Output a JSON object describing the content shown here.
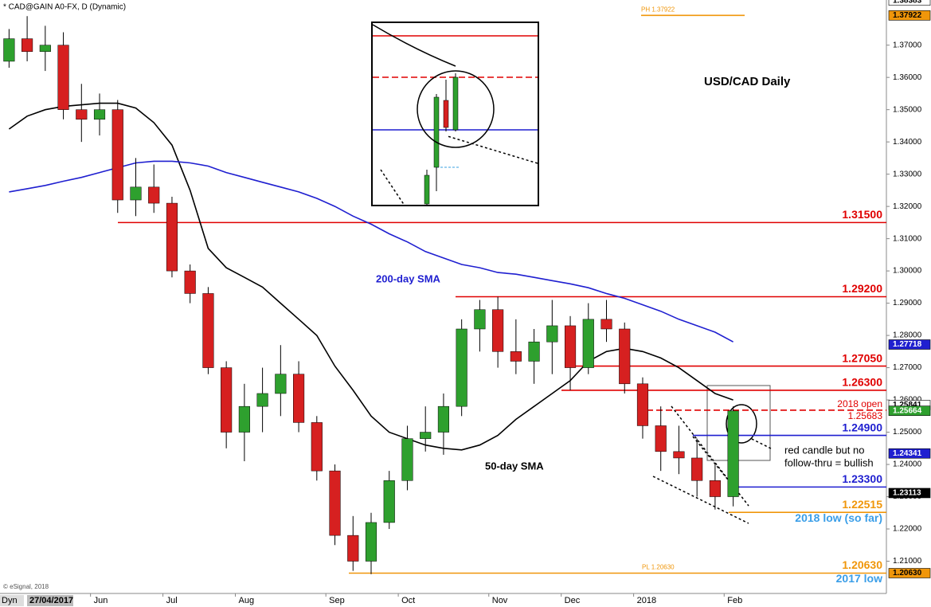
{
  "chart_data": {
    "type": "candlestick",
    "source": "* CAD@GAIN A0-FX, D (Dynamic)",
    "title": "USD/CAD Daily",
    "credit": "© eSignal, 2018",
    "mode_label": "Dyn",
    "start_label": "27/04/2017",
    "categories": [
      null,
      null,
      null,
      null,
      null,
      "Jun",
      null,
      null,
      null,
      "Jul",
      null,
      null,
      null,
      "Aug",
      null,
      null,
      null,
      null,
      "Sep",
      null,
      null,
      null,
      "Oct",
      null,
      null,
      null,
      null,
      "Nov",
      null,
      null,
      null,
      "Dec",
      null,
      null,
      null,
      "2018",
      null,
      null,
      null,
      null,
      "Feb"
    ],
    "open": [
      1.365,
      1.372,
      1.368,
      1.37,
      1.35,
      1.347,
      1.35,
      1.322,
      1.326,
      1.321,
      1.3,
      1.293,
      1.27,
      1.25,
      1.258,
      1.262,
      1.268,
      1.253,
      1.238,
      1.218,
      1.21,
      1.222,
      1.235,
      1.248,
      1.25,
      1.258,
      1.282,
      1.288,
      1.275,
      1.272,
      1.278,
      1.283,
      1.27,
      1.285,
      1.282,
      1.265,
      1.252,
      1.244,
      1.242,
      1.235,
      1.23
    ],
    "high": [
      1.375,
      1.379,
      1.376,
      1.374,
      1.358,
      1.355,
      1.353,
      1.335,
      1.333,
      1.323,
      1.302,
      1.295,
      1.272,
      1.265,
      1.27,
      1.277,
      1.272,
      1.255,
      1.24,
      1.224,
      1.225,
      1.238,
      1.252,
      1.258,
      1.262,
      1.285,
      1.291,
      1.292,
      1.285,
      1.282,
      1.291,
      1.286,
      1.29,
      1.291,
      1.284,
      1.267,
      1.258,
      1.252,
      1.248,
      1.24,
      1.258
    ],
    "low": [
      1.363,
      1.365,
      1.362,
      1.347,
      1.34,
      1.342,
      1.318,
      1.317,
      1.318,
      1.298,
      1.29,
      1.268,
      1.245,
      1.241,
      1.25,
      1.255,
      1.25,
      1.235,
      1.215,
      1.207,
      1.206,
      1.22,
      1.232,
      1.244,
      1.243,
      1.255,
      1.275,
      1.27,
      1.268,
      1.265,
      1.268,
      1.263,
      1.268,
      1.278,
      1.262,
      1.248,
      1.238,
      1.237,
      1.23,
      1.226,
      1.227
    ],
    "close": [
      1.372,
      1.368,
      1.37,
      1.35,
      1.347,
      1.35,
      1.322,
      1.326,
      1.321,
      1.3,
      1.293,
      1.27,
      1.25,
      1.258,
      1.262,
      1.268,
      1.253,
      1.238,
      1.218,
      1.21,
      1.222,
      1.235,
      1.248,
      1.25,
      1.258,
      1.282,
      1.288,
      1.275,
      1.272,
      1.278,
      1.283,
      1.27,
      1.285,
      1.282,
      1.265,
      1.252,
      1.244,
      1.242,
      1.235,
      1.23,
      1.2566
    ],
    "up_color": "#2ea02e",
    "down_color": "#d62020",
    "series": [
      {
        "name": "50-day SMA",
        "color": "#000000",
        "values": [
          1.344,
          1.348,
          1.35,
          1.351,
          1.3515,
          1.352,
          1.352,
          1.3505,
          1.346,
          1.339,
          1.325,
          1.307,
          1.301,
          1.298,
          1.295,
          1.29,
          1.285,
          1.28,
          1.2705,
          1.263,
          1.255,
          1.25,
          1.248,
          1.246,
          1.245,
          1.2445,
          1.246,
          1.249,
          1.254,
          1.258,
          1.262,
          1.266,
          1.272,
          1.275,
          1.276,
          1.275,
          1.273,
          1.27,
          1.266,
          1.262,
          1.26
        ]
      },
      {
        "name": "200-day SMA",
        "color": "#1f1fd0",
        "values": [
          1.3245,
          1.3255,
          1.3265,
          1.3278,
          1.329,
          1.3305,
          1.332,
          1.3335,
          1.334,
          1.334,
          1.3335,
          1.3325,
          1.3305,
          1.329,
          1.3275,
          1.326,
          1.3245,
          1.3225,
          1.32,
          1.317,
          1.3145,
          1.3115,
          1.309,
          1.306,
          1.304,
          1.302,
          1.301,
          1.2995,
          1.299,
          1.298,
          1.297,
          1.296,
          1.2948,
          1.293,
          1.2915,
          1.2895,
          1.2875,
          1.285,
          1.283,
          1.281,
          1.278
        ]
      }
    ],
    "levels": [
      {
        "value": 1.315,
        "label": "1.31500",
        "color": "#e00000"
      },
      {
        "value": 1.292,
        "label": "1.29200",
        "color": "#e00000"
      },
      {
        "value": 1.2705,
        "label": "1.27050",
        "color": "#e00000"
      },
      {
        "value": 1.263,
        "label": "1.26300",
        "color": "#e00000"
      },
      {
        "value": 1.25683,
        "label": "1.25683",
        "note": "2018 open",
        "color": "#e00000",
        "dashed": true
      },
      {
        "value": 1.249,
        "label": "1.24900",
        "color": "#1f1fd0"
      },
      {
        "value": 1.233,
        "label": "1.23300",
        "color": "#1f1fd0"
      },
      {
        "value": 1.22515,
        "label": "1.22515",
        "note": "2018 low (so far)",
        "color": "#f0960a"
      },
      {
        "value": 1.2063,
        "label": "1.20630",
        "note": "2017 low",
        "marker": "PL 1.20630",
        "color": "#f0960a"
      },
      {
        "value": 1.37922,
        "marker": "PH 1.37922",
        "color": "#f0960a"
      }
    ],
    "price_tags": [
      {
        "value": 1.38383,
        "label": "1.38383",
        "color": "#ffffff"
      },
      {
        "value": 1.37922,
        "label": "1.37922",
        "color": "#f0960a"
      },
      {
        "value": 1.27718,
        "label": "1.27718",
        "color": "#1f1fd0"
      },
      {
        "value": 1.25841,
        "label": "1.25841",
        "color": "#ffffff"
      },
      {
        "value": 1.25664,
        "label": "1.25664",
        "color": "#2ea02e"
      },
      {
        "value": 1.24341,
        "label": "1.24341",
        "color": "#1f1fd0"
      },
      {
        "value": 1.23113,
        "label": "1.23113",
        "color": "#000000"
      },
      {
        "value": 1.2063,
        "label": "1.20630",
        "color": "#f0960a"
      }
    ],
    "annotations": [
      "red candle but no",
      "follow-thru = bullish"
    ],
    "ylim": [
      1.2,
      1.384
    ],
    "yticks": [
      {
        "value": 1.21,
        "label": "1.21000"
      },
      {
        "value": 1.22,
        "label": "1.22000"
      },
      {
        "value": 1.23,
        "label": "1.23000"
      },
      {
        "value": 1.24,
        "label": "1.24000"
      },
      {
        "value": 1.25,
        "label": "1.25000"
      },
      {
        "value": 1.26,
        "label": "1.26000"
      },
      {
        "value": 1.27,
        "label": "1.27000"
      },
      {
        "value": 1.28,
        "label": "1.28000"
      },
      {
        "value": 1.29,
        "label": "1.29000"
      },
      {
        "value": 1.3,
        "label": "1.30000"
      },
      {
        "value": 1.31,
        "label": "1.31000"
      },
      {
        "value": 1.32,
        "label": "1.32000"
      },
      {
        "value": 1.33,
        "label": "1.33000"
      },
      {
        "value": 1.34,
        "label": "1.34000"
      },
      {
        "value": 1.35,
        "label": "1.35000"
      },
      {
        "value": 1.36,
        "label": "1.36000"
      },
      {
        "value": 1.37,
        "label": "1.37000"
      }
    ]
  }
}
